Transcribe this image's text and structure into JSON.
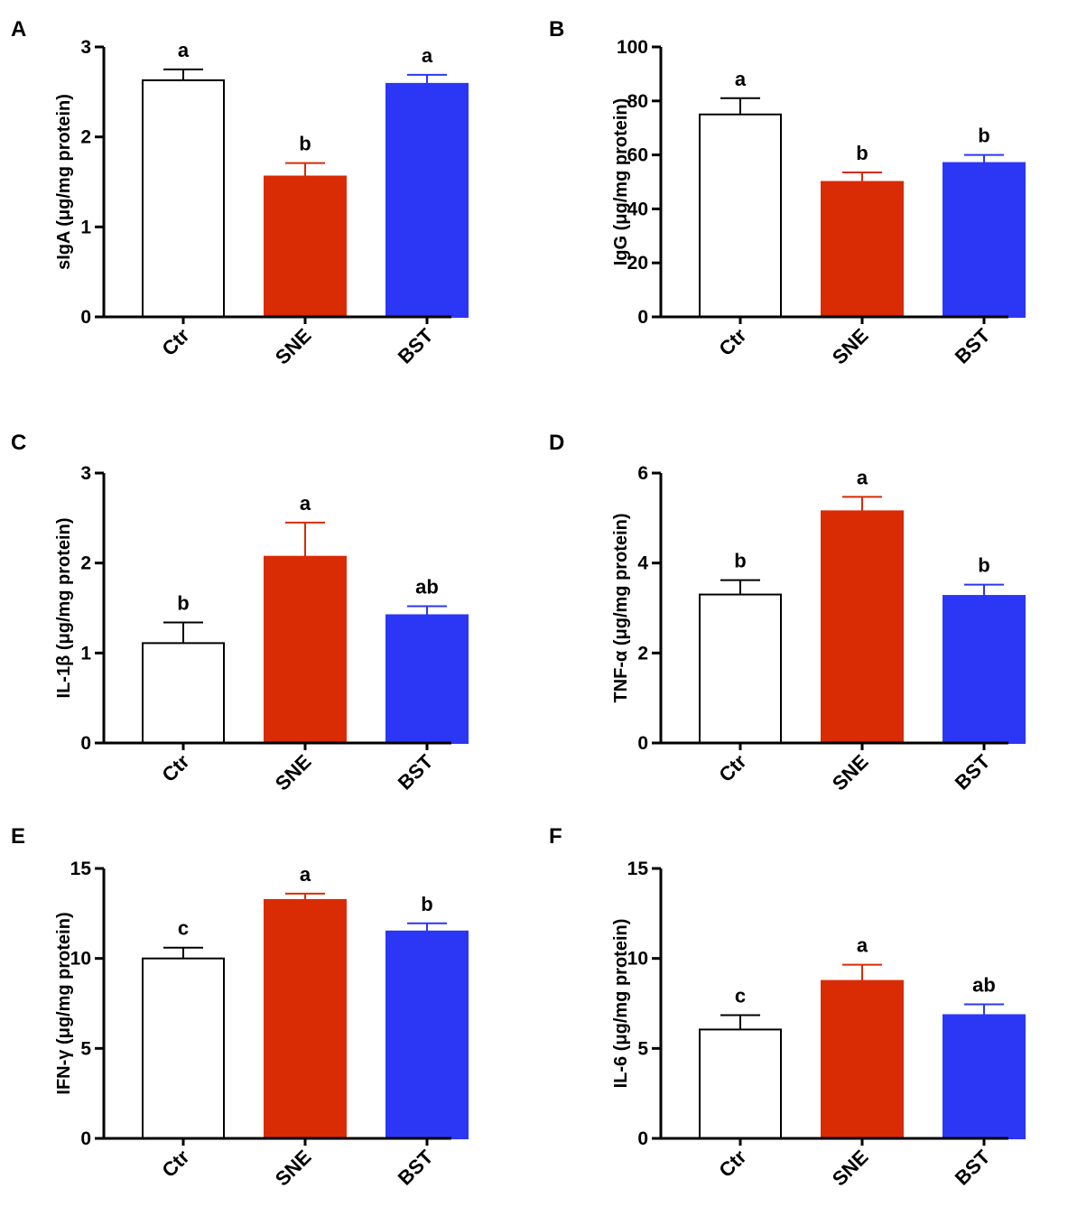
{
  "figure": {
    "panels": [
      {
        "label": "A",
        "chart_data": {
          "type": "bar",
          "categories": [
            "Ctr",
            "SNE",
            "BST"
          ],
          "values": [
            2.63,
            1.56,
            2.59
          ],
          "errors": [
            0.12,
            0.15,
            0.1
          ],
          "significance": [
            "a",
            "b",
            "a"
          ],
          "ylabel": "sIgA (μg/mg protein)",
          "ylim": [
            0,
            3
          ],
          "yticks": [
            0,
            1,
            2,
            3
          ],
          "colors": [
            "#ffffff",
            "#d92b04",
            "#2b37f5"
          ]
        }
      },
      {
        "label": "B",
        "chart_data": {
          "type": "bar",
          "categories": [
            "Ctr",
            "SNE",
            "BST"
          ],
          "values": [
            75,
            50,
            57
          ],
          "errors": [
            6,
            3.5,
            3
          ],
          "significance": [
            "a",
            "b",
            "b"
          ],
          "ylabel": "IgG (μg/mg protein)",
          "ylim": [
            0,
            100
          ],
          "yticks": [
            0,
            20,
            40,
            60,
            80,
            100
          ],
          "colors": [
            "#ffffff",
            "#d92b04",
            "#2b37f5"
          ]
        }
      },
      {
        "label": "C",
        "chart_data": {
          "type": "bar",
          "categories": [
            "Ctr",
            "SNE",
            "BST"
          ],
          "values": [
            1.11,
            2.07,
            1.42
          ],
          "errors": [
            0.23,
            0.38,
            0.1
          ],
          "significance": [
            "b",
            "a",
            "ab"
          ],
          "ylabel": "IL-1β  (μg/mg protein)",
          "ylim": [
            0,
            3
          ],
          "yticks": [
            0,
            1,
            2,
            3
          ],
          "colors": [
            "#ffffff",
            "#d92b04",
            "#2b37f5"
          ]
        }
      },
      {
        "label": "D",
        "chart_data": {
          "type": "bar",
          "categories": [
            "Ctr",
            "SNE",
            "BST"
          ],
          "values": [
            3.3,
            5.15,
            3.27
          ],
          "errors": [
            0.32,
            0.32,
            0.25
          ],
          "significance": [
            "b",
            "a",
            "b"
          ],
          "ylabel": "TNF-α (μg/mg protein)",
          "ylim": [
            0,
            6
          ],
          "yticks": [
            0,
            2,
            4,
            6
          ],
          "colors": [
            "#ffffff",
            "#d92b04",
            "#2b37f5"
          ]
        }
      },
      {
        "label": "E",
        "chart_data": {
          "type": "bar",
          "categories": [
            "Ctr",
            "SNE",
            "BST"
          ],
          "values": [
            10.0,
            13.25,
            11.5
          ],
          "errors": [
            0.6,
            0.35,
            0.45
          ],
          "significance": [
            "c",
            "a",
            "b"
          ],
          "ylabel": "IFN-γ (μg/mg protein)",
          "ylim": [
            0,
            15
          ],
          "yticks": [
            0,
            5,
            10,
            15
          ],
          "colors": [
            "#ffffff",
            "#d92b04",
            "#2b37f5"
          ]
        }
      },
      {
        "label": "F",
        "chart_data": {
          "type": "bar",
          "categories": [
            "Ctr",
            "SNE",
            "BST"
          ],
          "values": [
            6.05,
            8.75,
            6.85
          ],
          "errors": [
            0.8,
            0.9,
            0.6
          ],
          "significance": [
            "c",
            "a",
            "ab"
          ],
          "ylabel": "IL-6 (μg/mg  protein)",
          "ylim": [
            0,
            15
          ],
          "yticks": [
            0,
            5,
            10,
            15
          ],
          "colors": [
            "#ffffff",
            "#d92b04",
            "#2b37f5"
          ]
        }
      }
    ]
  }
}
